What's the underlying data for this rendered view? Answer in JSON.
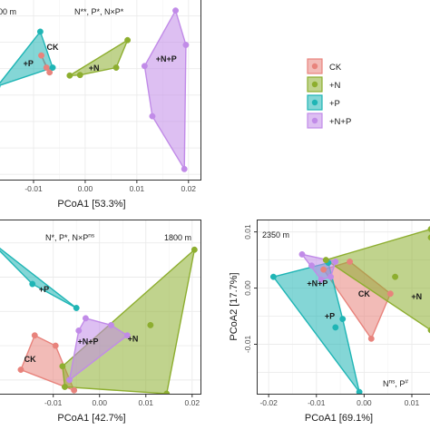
{
  "colors": {
    "CK": "#E8837C",
    "+N": "#8DAE2F",
    "+P": "#1FB5B5",
    "+N+P": "#C18BE8"
  },
  "legend": [
    "CK",
    "+N",
    "+P",
    "+N+P"
  ],
  "chart_data": [
    {
      "type": "scatter",
      "panel": "a",
      "title": "",
      "elevation": "00 m",
      "stats": "N**, P*, N×P*",
      "xlabel": "PCoA1 [53.3%]",
      "ylabel": "",
      "xticks": [
        -0.01,
        0.0,
        0.01,
        0.02
      ],
      "xtick_labels": [
        "-0.01",
        "0.00",
        "0.01",
        "0.02"
      ],
      "xlim": [
        -0.0165,
        0.0225
      ],
      "ylim": [
        -0.016,
        0.018
      ],
      "grid": true,
      "series": [
        {
          "name": "CK",
          "x": [
            -0.0085,
            -0.0075,
            -0.0069
          ],
          "y": [
            0.0075,
            0.0052,
            0.0043
          ],
          "label_x": -0.0063,
          "label_y": 0.0091
        },
        {
          "name": "+N",
          "x": [
            -0.003,
            -0.001,
            0.006,
            0.0082
          ],
          "y": [
            0.0037,
            0.0038,
            0.0052,
            0.0104
          ],
          "label_x": 0.0017,
          "label_y": 0.0051
        },
        {
          "name": "+P",
          "x": [
            -0.017,
            -0.0087,
            -0.0063
          ],
          "y": [
            0.0017,
            0.012,
            0.0052
          ],
          "label_x": -0.011,
          "label_y": 0.006
        },
        {
          "name": "+N+P",
          "x": [
            0.0115,
            0.0175,
            0.0195,
            0.0192,
            0.013
          ],
          "y": [
            0.0055,
            0.016,
            0.0095,
            -0.014,
            -0.004
          ],
          "label_x": 0.0157,
          "label_y": 0.0068
        }
      ]
    },
    {
      "type": "scatter",
      "panel": "b",
      "title": "",
      "elevation": "1800 m",
      "stats": "N*, P*, N×P",
      "stats_superscript": "ns",
      "xlabel": "PCoA1 [42.7%]",
      "ylabel": "",
      "xticks": [
        -0.01,
        0.0,
        0.01,
        0.02
      ],
      "xtick_labels": [
        "-0.01",
        "0.00",
        "0.01",
        "0.02"
      ],
      "xlim": [
        -0.0215,
        0.022
      ],
      "ylim": [
        -0.012,
        0.0134
      ],
      "grid": true,
      "series": [
        {
          "name": "CK",
          "x": [
            -0.017,
            -0.014,
            -0.0095,
            -0.0055
          ],
          "y": [
            -0.0085,
            -0.0035,
            -0.005,
            -0.0115
          ],
          "label_x": -0.015,
          "label_y": -0.007
        },
        {
          "name": "+N",
          "x": [
            -0.008,
            0.011,
            0.0205,
            0.0145,
            -0.0075
          ],
          "y": [
            -0.008,
            -0.002,
            0.009,
            -0.012,
            -0.011
          ],
          "label_x": 0.0072,
          "label_y": -0.004
        },
        {
          "name": "+P",
          "x": [
            -0.024,
            -0.0145,
            -0.005
          ],
          "y": [
            0.0105,
            0.004,
            0.0005
          ],
          "label_x": -0.012,
          "label_y": 0.0032
        },
        {
          "name": "+N+P",
          "x": [
            -0.0045,
            -0.003,
            0.0025,
            0.006,
            -0.0065
          ],
          "y": [
            -0.0028,
            -0.001,
            -0.002,
            -0.0035,
            -0.01
          ],
          "label_x": -0.0025,
          "label_y": -0.0044
        }
      ]
    },
    {
      "type": "scatter",
      "panel": "c",
      "title": "",
      "elevation": "2350 m",
      "stats": "N",
      "stats_superscript": "ns",
      "stats_suffix": ", P",
      "stats_suffix_superscript": "#",
      "xlabel": "PCoA1 [69.1%]",
      "ylabel": "PCoA2 [17.7%]",
      "xticks": [
        -0.02,
        -0.01,
        0.0,
        0.01
      ],
      "xtick_labels": [
        "-0.02",
        "-0.01",
        "0.00",
        "0.01"
      ],
      "yticks": [
        -0.01,
        0.0,
        0.01
      ],
      "ytick_labels": [
        "-0.01",
        "0.00",
        "0.01"
      ],
      "xlim": [
        -0.0225,
        0.0138
      ],
      "ylim": [
        -0.0188,
        0.0122
      ],
      "grid": true,
      "series": [
        {
          "name": "CK",
          "x": [
            -0.0085,
            -0.003,
            0.0015,
            0.0055
          ],
          "y": [
            0.0033,
            0.0047,
            -0.009,
            -0.001
          ],
          "label_x": 0.0,
          "label_y": -0.001
        },
        {
          "name": "+N",
          "x": [
            -0.008,
            0.0065,
            0.014,
            0.014,
            0.014
          ],
          "y": [
            0.005,
            0.002,
            0.0105,
            0.009,
            -0.0075
          ],
          "label_x": 0.011,
          "label_y": -0.0015
        },
        {
          "name": "+P",
          "x": [
            -0.019,
            -0.0075,
            -0.001,
            -0.0045,
            -0.006
          ],
          "y": [
            0.002,
            0.0045,
            -0.0185,
            -0.0055,
            -0.007
          ],
          "label_x": -0.0072,
          "label_y": -0.005
        },
        {
          "name": "+N+P",
          "x": [
            -0.013,
            -0.011,
            -0.009,
            -0.007,
            -0.006
          ],
          "y": [
            0.006,
            0.004,
            0.0015,
            0.002,
            0.0047
          ],
          "label_x": -0.0098,
          "label_y": 0.0008
        }
      ]
    }
  ]
}
